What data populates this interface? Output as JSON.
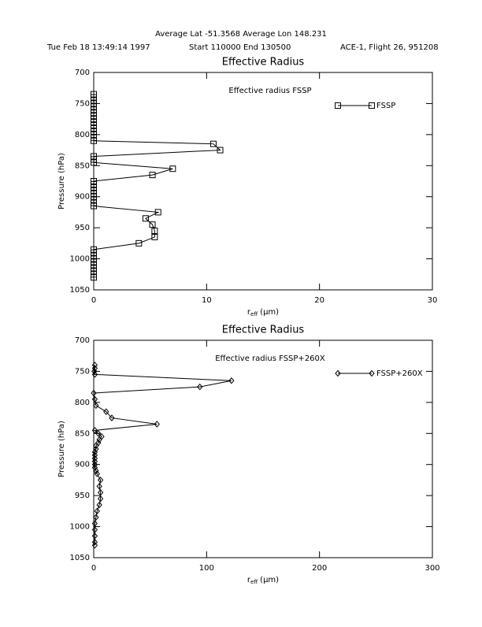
{
  "header": {
    "line1": "Average Lat -51.3568  Average Lon 148.231",
    "date": "Tue Feb 18 13:49:14 1997",
    "time": "Start 110000  End 130500",
    "flight": "ACE-1, Flight 26, 951208"
  },
  "chart_data": [
    {
      "type": "line",
      "marker": "square",
      "title": "Effective Radius",
      "subtitle": "Effective radius FSSP",
      "ylabel": "Pressure (hPa)",
      "xlabel": "r",
      "xlabel_sub": "eff",
      "xlabel_unit": "(μm)",
      "y": [
        735,
        740,
        745,
        750,
        755,
        760,
        765,
        770,
        775,
        780,
        785,
        790,
        795,
        800,
        805,
        810,
        815,
        825,
        835,
        840,
        845,
        855,
        865,
        875,
        880,
        885,
        890,
        895,
        900,
        905,
        910,
        915,
        925,
        935,
        945,
        955,
        965,
        975,
        985,
        990,
        995,
        1000,
        1005,
        1010,
        1015,
        1020,
        1025,
        1030
      ],
      "series": [
        {
          "name": "FSSP",
          "color": "#000000",
          "values": [
            0,
            0,
            0,
            0,
            0,
            0,
            0,
            0,
            0,
            0,
            0,
            0,
            0,
            0,
            0,
            0,
            10.6,
            11.2,
            0,
            0,
            0,
            7.0,
            5.2,
            0,
            0,
            0,
            0,
            0,
            0,
            0,
            0,
            0,
            5.7,
            4.6,
            5.2,
            5.4,
            5.4,
            4.0,
            0,
            0,
            0,
            0,
            0,
            0,
            0,
            0,
            0,
            0
          ]
        }
      ],
      "xlim": [
        0,
        30
      ],
      "xticks": [
        0,
        10,
        20,
        30
      ],
      "ylim": [
        700,
        1050
      ],
      "yticks": [
        700,
        750,
        800,
        850,
        900,
        950,
        1000,
        1050
      ],
      "y_inverted": true
    },
    {
      "type": "line",
      "marker": "diamond",
      "title": "Effective Radius",
      "subtitle": "Effective radius FSSP+260X",
      "ylabel": "Pressure (hPa)",
      "xlabel": "r",
      "xlabel_sub": "eff",
      "xlabel_unit": "(μm)",
      "y": [
        740,
        745,
        750,
        755,
        765,
        775,
        785,
        795,
        805,
        815,
        825,
        835,
        845,
        850,
        855,
        860,
        865,
        870,
        875,
        880,
        885,
        890,
        895,
        900,
        905,
        910,
        915,
        925,
        935,
        945,
        955,
        965,
        975,
        985,
        995,
        1005,
        1015,
        1025,
        1030
      ],
      "series": [
        {
          "name": "FSSP+260X",
          "color": "#000000",
          "values": [
            1,
            1,
            0.5,
            1,
            122,
            94,
            0,
            1,
            2,
            11,
            16,
            56,
            1,
            4,
            7,
            5,
            4,
            2,
            2,
            1,
            1,
            1,
            1,
            1,
            1,
            2,
            3,
            6,
            5,
            6,
            6,
            5,
            3,
            2,
            1,
            1,
            1,
            1,
            1
          ]
        }
      ],
      "xlim": [
        0,
        300
      ],
      "xticks": [
        0,
        100,
        200,
        300
      ],
      "ylim": [
        700,
        1050
      ],
      "yticks": [
        700,
        750,
        800,
        850,
        900,
        950,
        1000,
        1050
      ],
      "y_inverted": true
    }
  ]
}
